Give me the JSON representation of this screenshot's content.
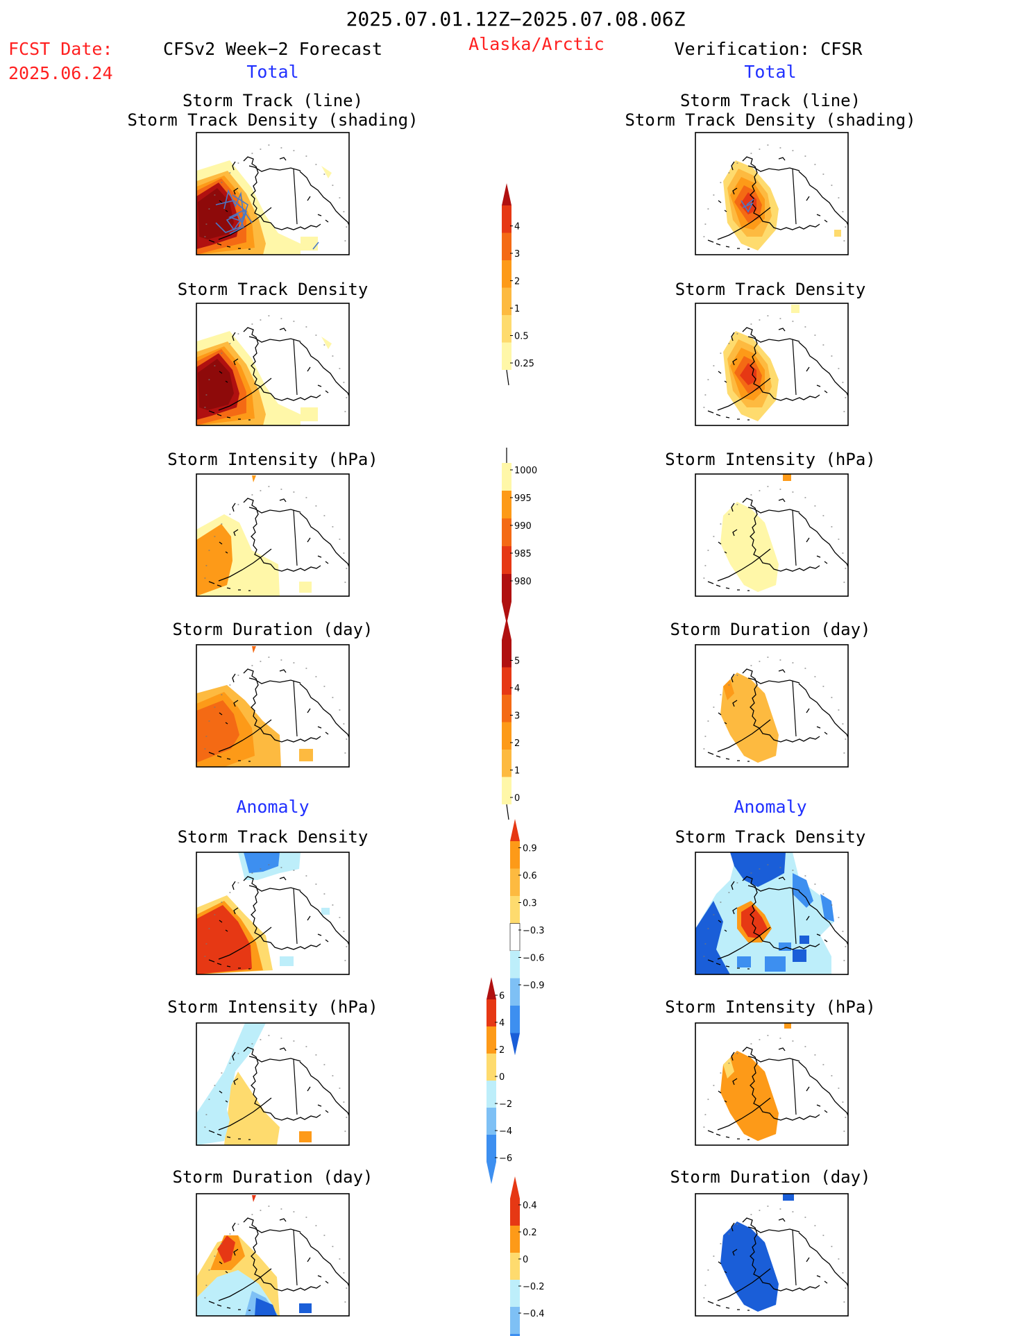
{
  "header": {
    "period": "2025.07.01.12Z−2025.07.08.06Z",
    "fcst_date_label": "FCST Date:",
    "fcst_date_value": "2025.06.24",
    "forecast_title": "CFSv2 Week−2 Forecast",
    "region": "Alaska/Arctic",
    "verification_title": "Verification: CFSR",
    "total_left": "Total",
    "total_right": "Total",
    "anomaly_left": "Anomaly",
    "anomaly_right": "Anomaly"
  },
  "panels": {
    "storm_track_line": "Storm Track (line)\nStorm Track Density (shading)",
    "storm_track_density": "Storm Track Density",
    "storm_intensity": "Storm Intensity (hPa)",
    "storm_duration": "Storm Duration (day)"
  },
  "colors": {
    "lightyellow": "#fff7a8",
    "yellow": "#fedb6e",
    "lightorange": "#fdba40",
    "orange": "#fd9a18",
    "darkorange": "#f46a14",
    "red": "#e63814",
    "darkred": "#b01010",
    "maroon": "#8e0a0a",
    "lightblue": "#bdeefa",
    "midblue": "#7ec0f5",
    "blue": "#3d8ff0",
    "darkblue": "#1a5ed8",
    "track": "#4a78c8"
  },
  "chart_data": [
    {
      "type": "heatmap",
      "title": "Colorbar: Storm Track Density (Total)",
      "levels": [
        0.25,
        0.5,
        1,
        2,
        3,
        4
      ],
      "labels": [
        "0.25",
        "0.5",
        "1",
        "2",
        "3",
        "4"
      ]
    },
    {
      "type": "heatmap",
      "title": "Colorbar: Storm Intensity (Total, hPa)",
      "levels": [
        1000,
        995,
        990,
        985,
        980
      ],
      "labels": [
        "1000",
        "995",
        "990",
        "985",
        "980"
      ]
    },
    {
      "type": "heatmap",
      "title": "Colorbar: Storm Duration (Total, day)",
      "levels": [
        0,
        1,
        2,
        3,
        4,
        5
      ],
      "labels": [
        "0",
        "1",
        "2",
        "3",
        "4",
        "5"
      ]
    },
    {
      "type": "heatmap",
      "title": "Colorbar: Storm Track Density (Anomaly)",
      "levels": [
        0.9,
        0.6,
        0.3,
        -0.3,
        -0.6,
        -0.9
      ],
      "labels": [
        "0.9",
        "0.6",
        "0.3",
        "−0.3",
        "−0.6",
        "−0.9"
      ]
    },
    {
      "type": "heatmap",
      "title": "Colorbar: Storm Intensity (Anomaly, hPa)",
      "levels": [
        6,
        4,
        2,
        0,
        -2,
        -4,
        -6
      ],
      "labels": [
        "6",
        "4",
        "2",
        "0",
        "−2",
        "−4",
        "−6"
      ]
    },
    {
      "type": "heatmap",
      "title": "Colorbar: Storm Duration (Anomaly, day)",
      "levels": [
        0.4,
        0.2,
        0,
        -0.2,
        -0.4
      ],
      "labels": [
        "0.4",
        "0.2",
        "0",
        "−0.2",
        "−0.4"
      ]
    }
  ]
}
